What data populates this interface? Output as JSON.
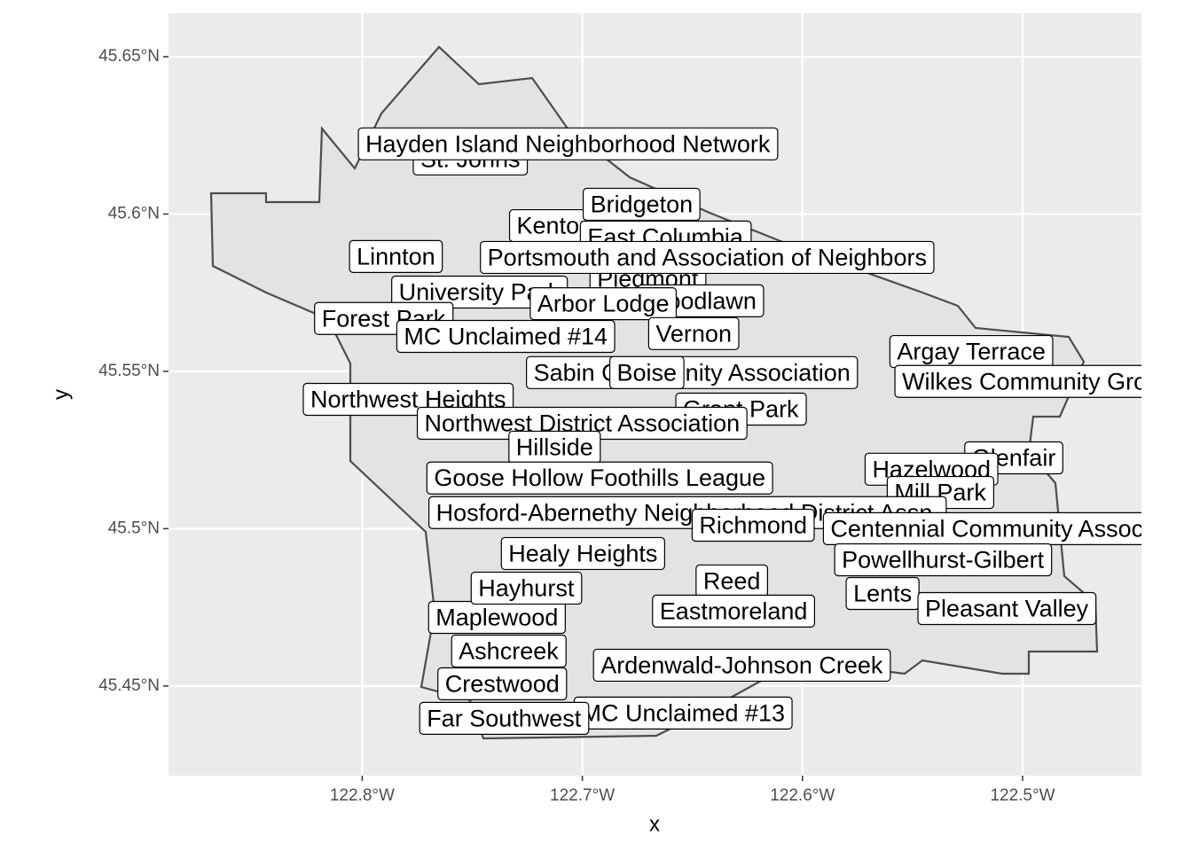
{
  "chart_data": {
    "type": "map",
    "xlabel": "x",
    "ylabel": "y",
    "xlim": [
      -122.888,
      -122.446
    ],
    "ylim": [
      45.4215,
      45.6638
    ],
    "xticks": [
      {
        "value": -122.8,
        "label": "122.8°W"
      },
      {
        "value": -122.7,
        "label": "122.7°W"
      },
      {
        "value": -122.6,
        "label": "122.6°W"
      },
      {
        "value": -122.5,
        "label": "122.5°W"
      }
    ],
    "yticks": [
      {
        "value": 45.45,
        "label": "45.45°N"
      },
      {
        "value": 45.5,
        "label": "45.5°N"
      },
      {
        "value": 45.55,
        "label": "45.55°N"
      },
      {
        "value": 45.6,
        "label": "45.6°N"
      },
      {
        "value": 45.65,
        "label": "45.65°N"
      }
    ],
    "grid": true,
    "labels": [
      "St. Johns",
      "Hayden Island Neighborhood Network",
      "Kenton",
      "Bridgeton",
      "East Columbia",
      "University Park",
      "Piedmont",
      "Woodlawn",
      "Linnton",
      "Portsmouth and Association of Neighbors",
      "Arbor Lodge",
      "Forest Park",
      "MC Unclaimed #14",
      "Vernon",
      "Argay Terrace",
      "Wilkes Community Group",
      "Sabin Community Association",
      "Boise",
      "Northwest Heights",
      "Grant Park",
      "Northwest District Association",
      "Hillside",
      "Glenfair",
      "Hazelwood",
      "Mill Park",
      "Goose Hollow Foothills League",
      "Hosford-Abernethy Neighborhood District Assn.",
      "Centennial Community Association",
      "Richmond",
      "Healy Heights",
      "Powellhurst-Gilbert",
      "Maplewood",
      "Hayhurst",
      "Reed",
      "Lents",
      "Pleasant Valley",
      "Eastmoreland",
      "Ashcreek",
      "Ardenwald-Johnson Creek",
      "MC Unclaimed #13",
      "Crestwood",
      "Far Southwest"
    ],
    "x": [
      -122.7509,
      -122.7066,
      -122.7126,
      -122.6731,
      -122.6623,
      -122.7468,
      -122.6703,
      -122.6462,
      -122.7847,
      -122.6433,
      -122.6905,
      -122.7903,
      -122.7348,
      -122.6494,
      -122.5233,
      -122.4931,
      -122.6502,
      -122.6707,
      -122.7791,
      -122.628,
      -122.7001,
      -122.7126,
      -122.504,
      -122.5414,
      -122.5374,
      -122.6921,
      -122.6522,
      -122.5032,
      -122.6224,
      -122.6997,
      -122.5362,
      -122.7388,
      -122.7255,
      -122.6321,
      -122.5636,
      -122.5072,
      -122.6313,
      -122.7335,
      -122.6276,
      -122.6542,
      -122.7364,
      -122.7356
    ],
    "y": [
      45.6175,
      45.6223,
      45.5963,
      45.6031,
      45.5927,
      45.5752,
      45.5794,
      45.5724,
      45.5865,
      45.5862,
      45.5715,
      45.5668,
      45.5611,
      45.562,
      45.5563,
      45.5468,
      45.5496,
      45.5496,
      45.5411,
      45.538,
      45.5335,
      45.5259,
      45.5225,
      45.5189,
      45.5115,
      45.5161,
      45.5051,
      45.5,
      45.5011,
      45.4921,
      45.4901,
      45.4718,
      45.4811,
      45.4834,
      45.4794,
      45.4746,
      45.4738,
      45.4611,
      45.4566,
      45.4414,
      45.4507,
      45.4397
    ]
  }
}
